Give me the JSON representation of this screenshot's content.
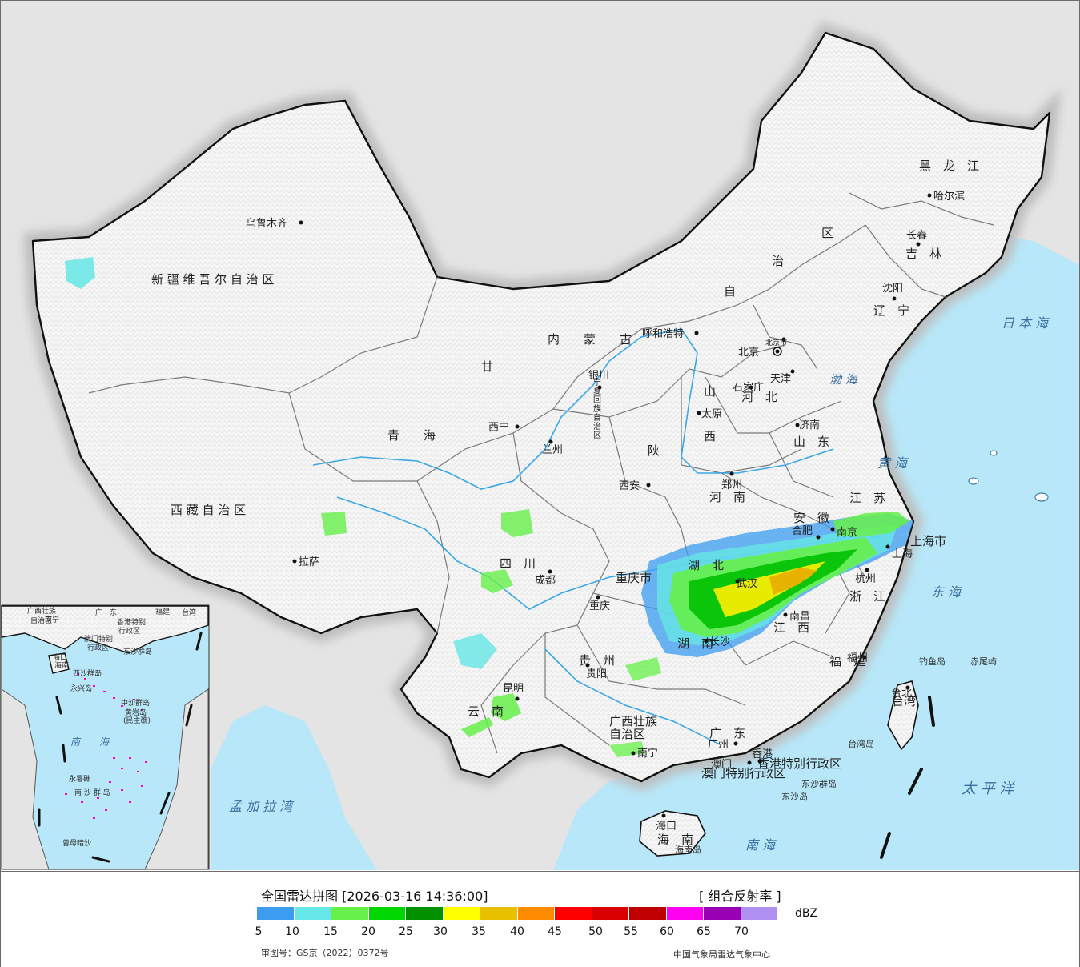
{
  "legend": {
    "title": "全国雷达拼图 [2026-03-16 14:36:00]",
    "product": "[ 组合反射率 ]",
    "unit": "dBZ",
    "ticks": [
      "5",
      "10",
      "15",
      "20",
      "25",
      "30",
      "35",
      "40",
      "45",
      "50",
      "55",
      "60",
      "65",
      "70"
    ],
    "colors": [
      "#3b9cf0",
      "#66e6e6",
      "#66f04a",
      "#00d600",
      "#009000",
      "#ffff00",
      "#e8c000",
      "#ff8c00",
      "#ff0000",
      "#d80000",
      "#c00000",
      "#ff00f0",
      "#9900b4",
      "#b090f0"
    ],
    "review_number": "审图号：GS京（2022）0372号",
    "producer": "中国气象局雷达气象中心"
  },
  "map": {
    "colors": {
      "land": "#f7f7f7",
      "foreign_land": "#e4e4e4",
      "sea": "#b7e7f8",
      "border": "#111111",
      "province_border": "#777777",
      "river": "#3aa7e6"
    },
    "regions": [
      "新 疆 维 吾 尔 自 治 区",
      "西 藏 自 治 区",
      "青　　海",
      "甘",
      "四　川",
      "云　南",
      "贵　州",
      "广西壮族",
      "自治区",
      "广　东",
      "海　南",
      "湖　南",
      "湖　北",
      "江　西",
      "福　建",
      "浙　江",
      "安　徽",
      "江　苏",
      "山　东",
      "河　南",
      "陕",
      "山",
      "西",
      "河　北",
      "内　　蒙　　古",
      "自",
      "治",
      "区",
      "辽　宁",
      "吉　林",
      "黑　龙　江",
      "重庆市",
      "上海市",
      "宁夏回族自治区",
      "台湾",
      "香港特别行政区",
      "澳门特别行政区"
    ],
    "cities": [
      "乌鲁木齐",
      "拉萨",
      "西宁",
      "兰州",
      "银川",
      "呼和浩特",
      "北京",
      "北京市",
      "天津",
      "石家庄",
      "太原",
      "济南",
      "郑州",
      "西安",
      "成都",
      "重庆",
      "昆明",
      "贵阳",
      "南宁",
      "广州",
      "澳门",
      "香港",
      "海口",
      "合肥",
      "南京",
      "上海",
      "杭州",
      "南昌",
      "武汉",
      "长沙",
      "福州",
      "台北",
      "沈阳",
      "长春",
      "哈尔滨"
    ],
    "seas": [
      "日 本 海",
      "渤 海",
      "黄 海",
      "东 海",
      "太 平 洋",
      "南 海",
      "孟 加 拉 湾"
    ],
    "islands": [
      "钓鱼岛",
      "赤尾屿",
      "台湾岛",
      "东沙群岛",
      "东沙岛",
      "海南岛"
    ],
    "inset": {
      "labels": [
        "广西壮族",
        "自治区",
        "南宁",
        "广　东",
        "福建",
        "台湾",
        "香港特别",
        "行政区",
        "澳门特别",
        "行政区",
        "东沙群岛",
        "海口",
        "海南",
        "西沙群岛",
        "永兴岛",
        "中沙群岛",
        "黄岩岛",
        "(民主礁)",
        "南　　海",
        "永暑礁",
        "南 沙 群 岛",
        "曾母暗沙"
      ]
    }
  }
}
